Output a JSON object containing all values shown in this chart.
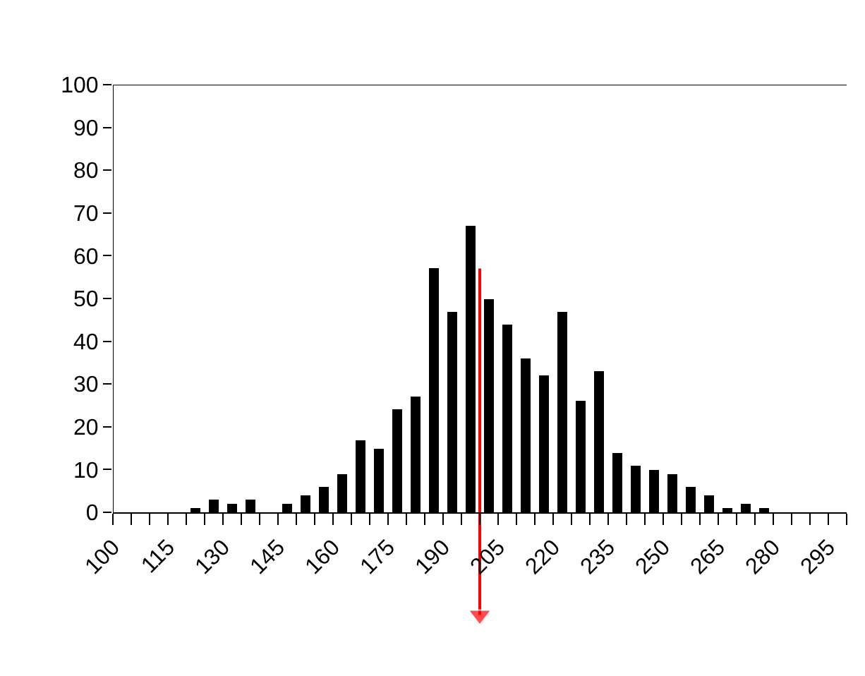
{
  "chart_data": {
    "type": "histogram",
    "bins": [
      100,
      105,
      110,
      115,
      120,
      125,
      130,
      135,
      140,
      145,
      150,
      155,
      160,
      165,
      170,
      175,
      180,
      185,
      190,
      195,
      200,
      205,
      210,
      215,
      220,
      225,
      230,
      235,
      240,
      245,
      250,
      255,
      260,
      265,
      270,
      275,
      280,
      285,
      290,
      295,
      300
    ],
    "values": [
      0,
      0,
      0,
      0,
      1,
      3,
      2,
      3,
      0,
      2,
      4,
      6,
      9,
      17,
      15,
      24,
      27,
      57,
      47,
      67,
      50,
      44,
      36,
      32,
      47,
      26,
      33,
      14,
      11,
      10,
      9,
      6,
      4,
      1,
      2,
      1,
      0,
      0,
      0,
      0
    ],
    "color": "#000000",
    "xlim": [
      100,
      300
    ],
    "xticks": [
      100,
      {
        "value": 105,
        "label": null
      },
      {
        "value": 110,
        "label": null
      },
      115,
      {
        "value": 120,
        "label": null
      },
      {
        "value": 125,
        "label": null
      },
      130,
      {
        "value": 135,
        "label": null
      },
      {
        "value": 140,
        "label": null
      },
      145,
      {
        "value": 150,
        "label": null
      },
      {
        "value": 155,
        "label": null
      },
      160,
      {
        "value": 165,
        "label": null
      },
      {
        "value": 170,
        "label": null
      },
      175,
      {
        "value": 180,
        "label": null
      },
      {
        "value": 185,
        "label": null
      },
      190,
      {
        "value": 195,
        "label": null
      },
      {
        "value": 200,
        "label": null
      },
      205,
      {
        "value": 210,
        "label": null
      },
      {
        "value": 215,
        "label": null
      },
      220,
      {
        "value": 225,
        "label": null
      },
      {
        "value": 230,
        "label": null
      },
      235,
      {
        "value": 240,
        "label": null
      },
      {
        "value": 245,
        "label": null
      },
      250,
      {
        "value": 255,
        "label": null
      },
      {
        "value": 260,
        "label": null
      },
      265,
      {
        "value": 270,
        "label": null
      },
      {
        "value": 275,
        "label": null
      },
      280,
      {
        "value": 285,
        "label": null
      },
      {
        "value": 290,
        "label": null
      },
      295,
      {
        "value": 300,
        "label": null
      }
    ],
    "ylim": [
      0,
      100
    ],
    "yticks": [
      0,
      10,
      20,
      30,
      40,
      50,
      60,
      70,
      80,
      90,
      100
    ],
    "ref_lines": [
      {
        "axis": "x",
        "value": 200,
        "color": "#ff0000"
      }
    ]
  }
}
